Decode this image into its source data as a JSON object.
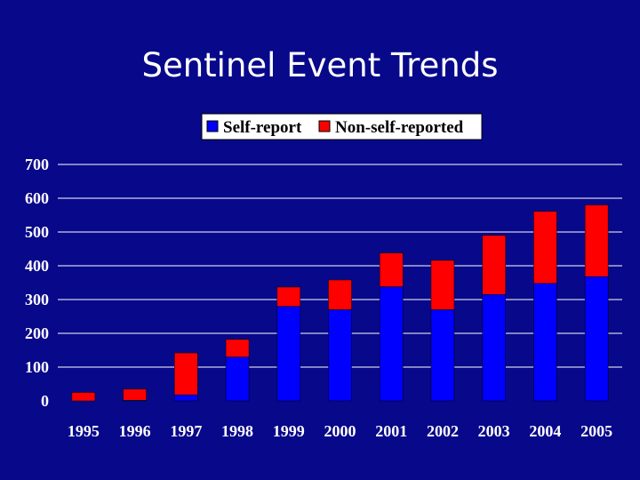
{
  "slide": {
    "title": "Sentinel Event Trends"
  },
  "colors": {
    "background": "#08088a",
    "self_report": "#0000ff",
    "non_self_reported": "#ff0000",
    "grid": "#ffffff",
    "legend_bg": "#ffffff"
  },
  "chart_data": {
    "type": "bar",
    "stacked": true,
    "title": "Sentinel Event Trends",
    "categories": [
      "1995",
      "1996",
      "1997",
      "1998",
      "1999",
      "2000",
      "2001",
      "2002",
      "2003",
      "2004",
      "2005"
    ],
    "series": [
      {
        "name": "Self-report",
        "values": [
          0,
          2,
          18,
          130,
          280,
          270,
          338,
          270,
          315,
          348,
          368
        ]
      },
      {
        "name": "Non-self-reported",
        "values": [
          25,
          33,
          124,
          52,
          57,
          88,
          100,
          146,
          175,
          213,
          212
        ]
      }
    ],
    "ylim": [
      0,
      700
    ],
    "yticks": [
      0,
      100,
      200,
      300,
      400,
      500,
      600,
      700
    ],
    "xlabel": "",
    "ylabel": "",
    "grid": true,
    "legend_position": "top-center"
  }
}
